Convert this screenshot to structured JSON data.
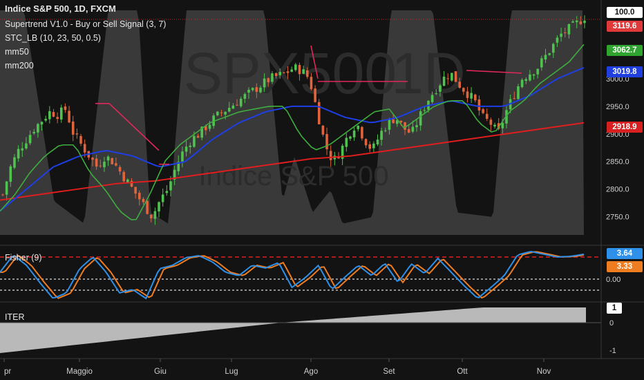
{
  "chart_data": [
    {
      "type": "candlestick",
      "title": "Indice S&P 500, 1D, FXCM",
      "watermark_symbol": "SPX500",
      "watermark_interval": "1D",
      "watermark_name": "Indice S&P 500",
      "indicators": [
        "Supertrend V1.0 - Buy or Sell Signal (3, 7)",
        "STC_LB (10, 23, 50, 0.5)",
        "mm50",
        "mm200"
      ],
      "y_ticks": [
        2750.0,
        2800.0,
        2850.0,
        2900.0,
        2950.0,
        3000.0
      ],
      "ylim": [
        2717,
        3130
      ],
      "x_ticks": [
        "pr",
        "Maggio",
        "Giu",
        "Lug",
        "Ago",
        "Set",
        "Ott",
        "Nov"
      ],
      "close_approx": [
        2790,
        2840,
        2870,
        2890,
        2910,
        2925,
        2940,
        2935,
        2945,
        2900,
        2880,
        2860,
        2840,
        2860,
        2850,
        2830,
        2810,
        2790,
        2770,
        2750,
        2780,
        2800,
        2840,
        2870,
        2890,
        2900,
        2915,
        2930,
        2940,
        2950,
        2960,
        2970,
        2980,
        2990,
        3000,
        3005,
        3010,
        3020,
        3015,
        3000,
        2940,
        2880,
        2850,
        2870,
        2900,
        2920,
        2890,
        2870,
        2900,
        2920,
        2930,
        2910,
        2900,
        2930,
        2960,
        2980,
        3000,
        3010,
        2990,
        2975,
        2960,
        2930,
        2920,
        2900,
        2940,
        2970,
        3000,
        3010,
        3020,
        3040,
        3060,
        3080,
        3090,
        3100,
        3112
      ],
      "mm50_approx": [
        2760,
        2800,
        2840,
        2860,
        2870,
        2860,
        2840,
        2850,
        2890,
        2920,
        2940,
        2950,
        2950,
        2930,
        2920,
        2930,
        2950,
        2960,
        2950,
        2950,
        2970,
        3000,
        3020
      ],
      "mm200_approx": [
        2780,
        2790,
        2800,
        2810,
        2815,
        2825,
        2835,
        2845,
        2855,
        2860,
        2870,
        2880,
        2890,
        2900,
        2910,
        2920
      ],
      "price_labels": [
        {
          "label": "3119.6",
          "color": "#e03939"
        },
        {
          "label": "3062.7",
          "color": "#2fa52f"
        },
        {
          "label": "3019.8",
          "color": "#1f3fe0"
        },
        {
          "label": "2918.9",
          "color": "#d82020"
        }
      ],
      "stc_label": "100.0"
    },
    {
      "type": "line",
      "title": "Fisher (9)",
      "y_ticks": [
        "0.00"
      ],
      "price_labels": [
        {
          "label": "3.64",
          "color": "#2e90e8"
        },
        {
          "label": "3.33",
          "color": "#ee7d22"
        }
      ],
      "series": [
        {
          "name": "Fisher",
          "color": "#2e90e8"
        },
        {
          "name": "Trigger",
          "color": "#ee7d22"
        }
      ]
    },
    {
      "type": "area",
      "title": "ITER",
      "y_ticks": [
        "1",
        "0",
        "-1"
      ],
      "ylim": [
        -1.2,
        1.2
      ],
      "current_label": "1"
    }
  ]
}
